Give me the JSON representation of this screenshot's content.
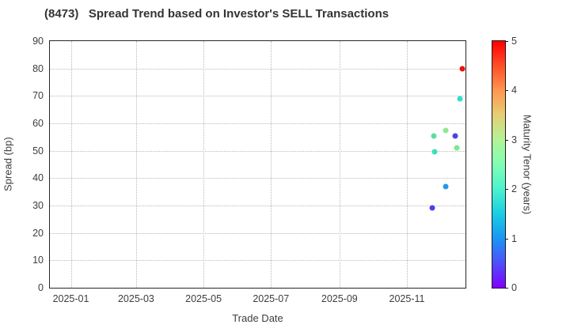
{
  "title": "(8473)   Spread Trend based on Investor's SELL Transactions",
  "colors": {
    "background": "#ffffff",
    "title_text": "#333333",
    "tick_text": "#3d3d3d",
    "grid": "#bababa",
    "axis_border": "#262626"
  },
  "chart_data": {
    "type": "scatter",
    "title": "(8473)   Spread Trend based on Investor's SELL Transactions",
    "xlabel": "Trade Date",
    "ylabel": "Spread (bp)",
    "xlim": [
      "2024-12-13",
      "2025-12-24"
    ],
    "ylim": [
      0,
      90
    ],
    "grid": true,
    "y_ticks": [
      0,
      10,
      20,
      30,
      40,
      50,
      60,
      70,
      80,
      90
    ],
    "x_ticks": [
      {
        "date": "2025-01-01",
        "label": "2025-01"
      },
      {
        "date": "2025-03-01",
        "label": "2025-03"
      },
      {
        "date": "2025-05-01",
        "label": "2025-05"
      },
      {
        "date": "2025-07-01",
        "label": "2025-07"
      },
      {
        "date": "2025-09-01",
        "label": "2025-09"
      },
      {
        "date": "2025-11-01",
        "label": "2025-11"
      }
    ],
    "points": [
      {
        "date": "2025-11-24",
        "spread_bp": 29,
        "maturity_tenor_years": 0.4,
        "color": "#4343EC"
      },
      {
        "date": "2025-11-25",
        "spread_bp": 55.5,
        "maturity_tenor_years": 2.5,
        "color": "#5CDF9E"
      },
      {
        "date": "2025-11-26",
        "spread_bp": 49.5,
        "maturity_tenor_years": 2.2,
        "color": "#3CE2B5"
      },
      {
        "date": "2025-12-06",
        "spread_bp": 57.5,
        "maturity_tenor_years": 3.0,
        "color": "#8FE98F"
      },
      {
        "date": "2025-12-06",
        "spread_bp": 37,
        "maturity_tenor_years": 1.0,
        "color": "#2B96E8"
      },
      {
        "date": "2025-12-15",
        "spread_bp": 55.5,
        "maturity_tenor_years": 0.5,
        "color": "#4B43E6"
      },
      {
        "date": "2025-12-16",
        "spread_bp": 51,
        "maturity_tenor_years": 2.9,
        "color": "#7FE98D"
      },
      {
        "date": "2025-12-19",
        "spread_bp": 69,
        "maturity_tenor_years": 2.1,
        "color": "#2EDFD0"
      },
      {
        "date": "2025-12-21",
        "spread_bp": 80,
        "maturity_tenor_years": 5.0,
        "color": "#EE1207"
      }
    ],
    "colorbar": {
      "label": "Maturity Tenor (years)",
      "min": 0,
      "max": 5,
      "ticks": [
        0,
        1,
        2,
        3,
        4,
        5
      ],
      "colormap": "rainbow",
      "stops": [
        {
          "value": 0.0,
          "color": "#8000FF"
        },
        {
          "value": 0.5,
          "color": "#4D4FFC"
        },
        {
          "value": 1.0,
          "color": "#1A96F3"
        },
        {
          "value": 1.5,
          "color": "#1ACEE3"
        },
        {
          "value": 2.0,
          "color": "#4DF2CE"
        },
        {
          "value": 2.5,
          "color": "#80FFB4"
        },
        {
          "value": 3.0,
          "color": "#B3F396"
        },
        {
          "value": 3.5,
          "color": "#E6CE74"
        },
        {
          "value": 4.0,
          "color": "#FF964F"
        },
        {
          "value": 4.5,
          "color": "#FF4F28"
        },
        {
          "value": 5.0,
          "color": "#FF0000"
        }
      ]
    }
  }
}
